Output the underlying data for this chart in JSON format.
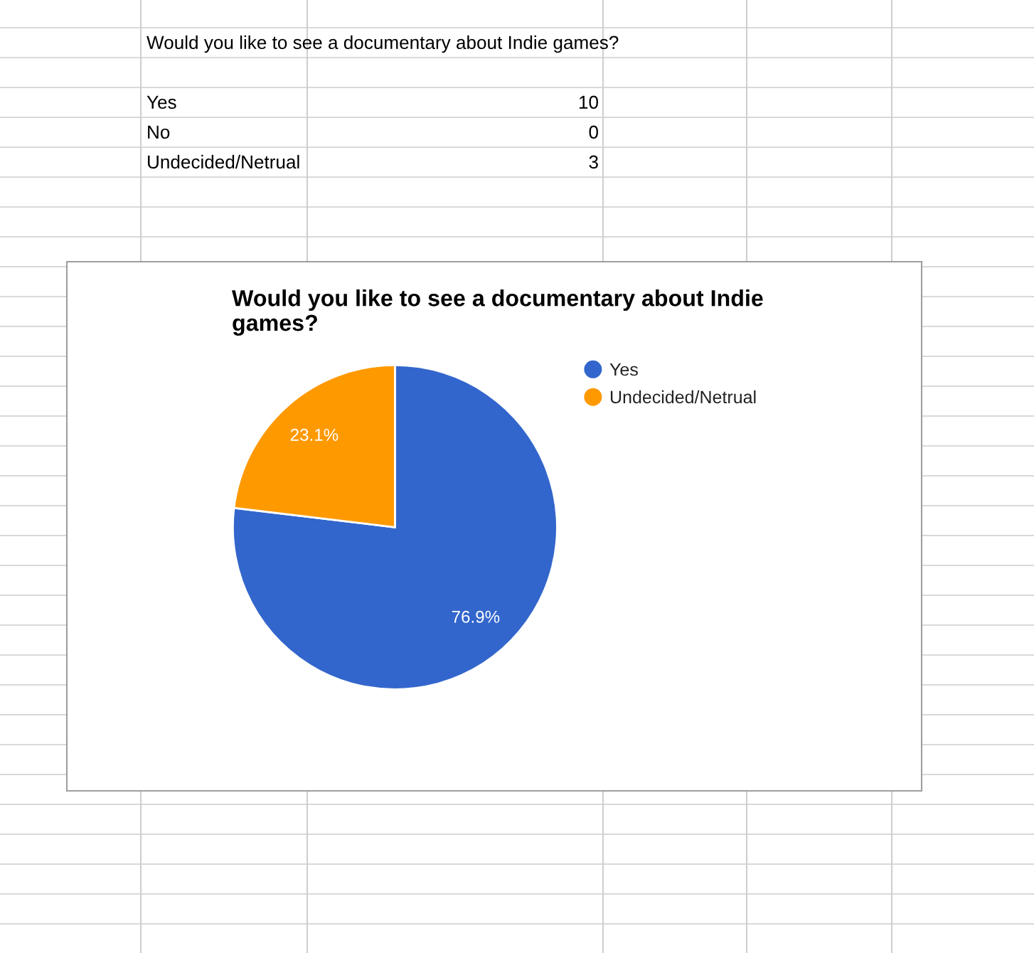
{
  "chart_data": [
    {
      "type": "other",
      "title": "Would you like to see a documentary about Indie games?",
      "annotations": [
        "Yes",
        "10",
        "No",
        "0",
        "Undecided/Netrual",
        "3"
      ]
    },
    {
      "type": "pie",
      "title": "Would you like to see a documentary about Indie games?",
      "categories": [
        "Yes",
        "Undecided/Netrual"
      ],
      "values": [
        76.9,
        23.1
      ],
      "colors": [
        "#3366cc",
        "#ff9900"
      ],
      "value_labels": [
        "76.9%",
        "23.1%"
      ],
      "legend": "top right"
    }
  ]
}
